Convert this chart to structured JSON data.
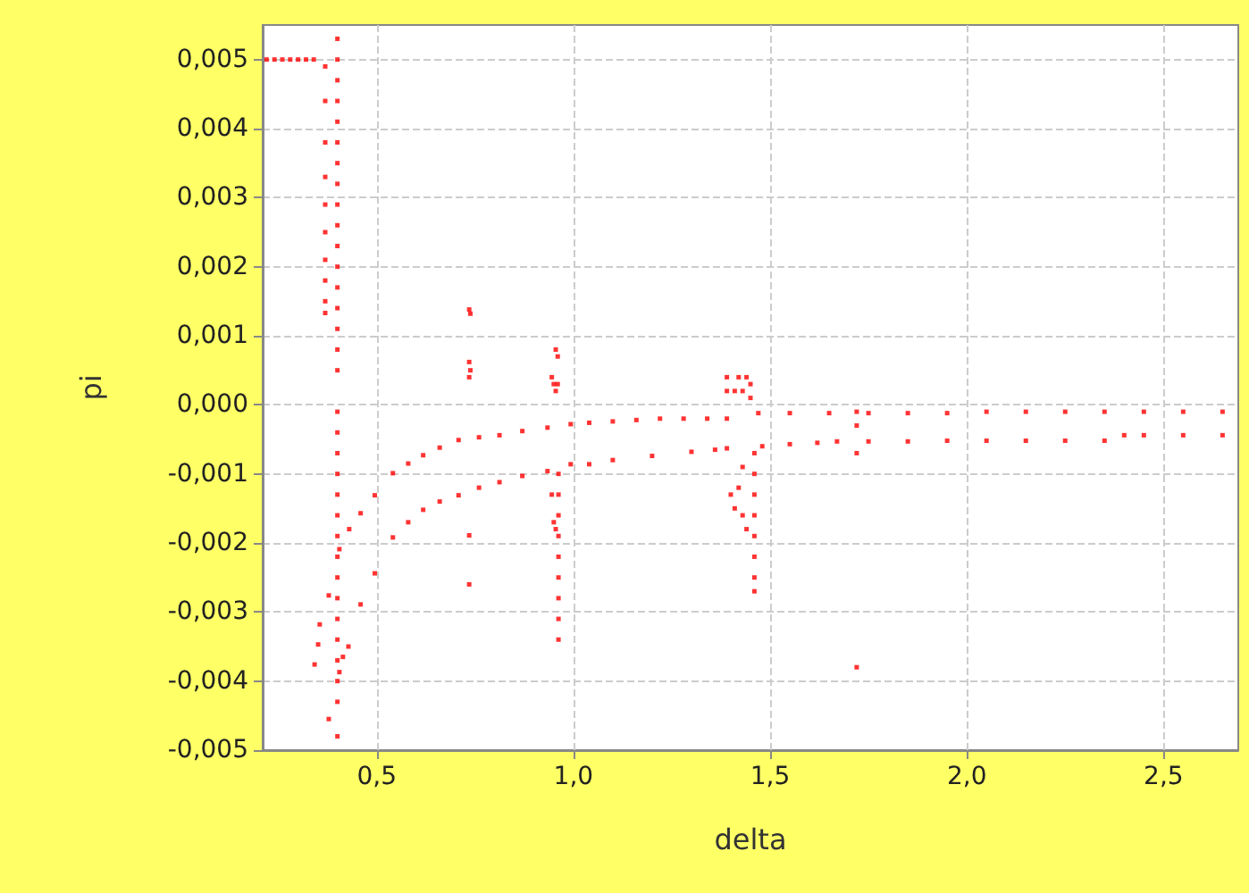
{
  "chart_data": {
    "type": "scatter",
    "xlabel": "delta",
    "ylabel": "pi",
    "marker": "square",
    "grid": true,
    "xlim": [
      0.21,
      2.69
    ],
    "xticks": [
      {
        "value": 0.5,
        "label": "0,5"
      },
      {
        "value": 1.0,
        "label": "1,0"
      },
      {
        "value": 1.5,
        "label": "1,5"
      },
      {
        "value": 2.0,
        "label": "2,0"
      },
      {
        "value": 2.5,
        "label": "2,5"
      }
    ],
    "ylim": [
      -0.005,
      0.0055
    ],
    "yticks": [
      {
        "value": -0.005,
        "label": "-0,005"
      },
      {
        "value": -0.004,
        "label": "-0,004"
      },
      {
        "value": -0.003,
        "label": "-0,003"
      },
      {
        "value": -0.002,
        "label": "-0,002"
      },
      {
        "value": -0.001,
        "label": "-0,001"
      },
      {
        "value": 0,
        "label": "0,000"
      },
      {
        "value": 0.001,
        "label": "0,001"
      },
      {
        "value": 0.002,
        "label": "0,002"
      },
      {
        "value": 0.003,
        "label": "0,003"
      },
      {
        "value": 0.004,
        "label": "0,004"
      },
      {
        "value": 0.005,
        "label": "0,005"
      }
    ],
    "series": [
      {
        "color": "#ff0000",
        "x": [
          0.22,
          0.24,
          0.26,
          0.28,
          0.3,
          0.32,
          0.34
        ],
        "values": [
          0.005,
          0.005,
          0.005,
          0.005,
          0.005,
          0.005,
          0.005
        ]
      },
      {
        "color": "#ff0000",
        "x": [
          0.405,
          0.43,
          0.459,
          0.495,
          0.541,
          0.58,
          0.618,
          0.66,
          0.708,
          0.76,
          0.812,
          0.87,
          0.934,
          0.993,
          1.04,
          1.1,
          1.16,
          1.22,
          1.28,
          1.34,
          1.39,
          1.47,
          1.55,
          1.65,
          1.75,
          1.85,
          1.95,
          2.05,
          2.15,
          2.25,
          2.35,
          2.45,
          2.55,
          2.65
        ],
        "values": [
          -0.00209,
          -0.0018,
          -0.00157,
          -0.00131,
          -0.00099,
          -0.00085,
          -0.00073,
          -0.00062,
          -0.00051,
          -0.00047,
          -0.00044,
          -0.00038,
          -0.00033,
          -0.00028,
          -0.00026,
          -0.00024,
          -0.00022,
          -0.0002,
          -0.0002,
          -0.0002,
          -0.0002,
          -0.00012,
          -0.00012,
          -0.00012,
          -0.00012,
          -0.00012,
          -0.00012,
          -0.0001,
          -0.0001,
          -0.0001,
          -0.0001,
          -0.0001,
          -0.0001,
          -0.0001
        ]
      },
      {
        "color": "#ff0000",
        "x": [
          0.405,
          0.428,
          0.459,
          0.495,
          0.541,
          0.58,
          0.618,
          0.66,
          0.708,
          0.76,
          0.812,
          0.87,
          0.934,
          0.993,
          1.04,
          1.1,
          1.2,
          1.3,
          1.36,
          1.39,
          1.48,
          1.55,
          1.62,
          1.67,
          1.75,
          1.85,
          1.95,
          2.05,
          2.15,
          2.25,
          2.35,
          2.4,
          2.45,
          2.55,
          2.65
        ],
        "values": [
          -0.00387,
          -0.0035,
          -0.00289,
          -0.00244,
          -0.00192,
          -0.0017,
          -0.00152,
          -0.0014,
          -0.00131,
          -0.0012,
          -0.00112,
          -0.00103,
          -0.00096,
          -0.00086,
          -0.00086,
          -0.0008,
          -0.00074,
          -0.00068,
          -0.00065,
          -0.00063,
          -0.0006,
          -0.00057,
          -0.00055,
          -0.00053,
          -0.00053,
          -0.00053,
          -0.00052,
          -0.00052,
          -0.00052,
          -0.00052,
          -0.00052,
          -0.00044,
          -0.00044,
          -0.00044,
          -0.00044
        ]
      },
      {
        "color": "#ff0000",
        "x": [
          0.4,
          0.4,
          0.4,
          0.4,
          0.4,
          0.4,
          0.4,
          0.4,
          0.4,
          0.4,
          0.4,
          0.4,
          0.4,
          0.4,
          0.4,
          0.4,
          0.4,
          0.4,
          0.4,
          0.4,
          0.4,
          0.4,
          0.4,
          0.4,
          0.4,
          0.4,
          0.4,
          0.4,
          0.4,
          0.4,
          0.4,
          0.4,
          0.4
        ],
        "values": [
          0.0053,
          0.005,
          0.0047,
          0.0044,
          0.0041,
          0.0038,
          0.0035,
          0.0032,
          0.0029,
          0.0026,
          0.0023,
          0.002,
          0.0017,
          0.0014,
          0.0011,
          0.0008,
          0.0005,
          -0.0001,
          -0.0004,
          -0.0007,
          -0.001,
          -0.0013,
          -0.0016,
          -0.0019,
          -0.0022,
          -0.0025,
          -0.0028,
          -0.0031,
          -0.0034,
          -0.0037,
          -0.004,
          -0.0043,
          -0.0048
        ]
      },
      {
        "color": "#ff0000",
        "x": [
          0.369,
          0.369,
          0.369,
          0.369,
          0.369,
          0.369,
          0.369,
          0.369,
          0.369,
          0.369,
          0.342,
          0.351,
          0.355,
          0.378,
          0.378,
          0.414
        ],
        "values": [
          0.0049,
          0.0044,
          0.0038,
          0.0033,
          0.0029,
          0.0025,
          0.0021,
          0.0018,
          0.0015,
          0.00133,
          -0.00376,
          -0.00347,
          -0.00318,
          -0.00276,
          -0.00455,
          -0.00365
        ]
      },
      {
        "color": "#ff0000",
        "x": [
          0.735,
          0.738,
          0.735,
          0.738,
          0.735,
          0.735,
          0.735
        ],
        "values": [
          0.00138,
          0.00132,
          0.00062,
          0.0005,
          0.0004,
          -0.00189,
          -0.0026
        ]
      },
      {
        "color": "#ff0000",
        "x": [
          0.955,
          0.96,
          0.95,
          0.96,
          0.955,
          0.945,
          0.962,
          0.962,
          0.962,
          0.962,
          0.962,
          0.962,
          0.962,
          0.962,
          0.962,
          0.945,
          0.95,
          0.955
        ],
        "values": [
          0.0008,
          0.0007,
          0.0003,
          0.0003,
          0.0002,
          0.0004,
          -0.001,
          -0.0013,
          -0.0016,
          -0.0019,
          -0.0022,
          -0.0025,
          -0.0028,
          -0.0031,
          -0.0034,
          -0.0013,
          -0.0017,
          -0.0018
        ]
      },
      {
        "color": "#ff0000",
        "x": [
          1.39,
          1.42,
          1.44,
          1.45,
          1.43,
          1.45,
          1.39,
          1.41,
          1.46,
          1.46,
          1.46,
          1.46,
          1.46,
          1.46,
          1.46,
          1.46,
          1.4,
          1.41,
          1.43,
          1.44,
          1.42,
          1.43
        ],
        "values": [
          0.0004,
          0.0004,
          0.0004,
          0.0003,
          0.0002,
          0.0001,
          0.0002,
          0.0002,
          -0.0007,
          -0.001,
          -0.0013,
          -0.0016,
          -0.0019,
          -0.0022,
          -0.0025,
          -0.0027,
          -0.0013,
          -0.0015,
          -0.0016,
          -0.0018,
          -0.0012,
          -0.0009
        ]
      },
      {
        "color": "#ff0000",
        "x": [
          1.72,
          1.72,
          1.72,
          1.72
        ],
        "values": [
          -0.0001,
          -0.0003,
          -0.0007,
          -0.0038
        ]
      }
    ]
  }
}
